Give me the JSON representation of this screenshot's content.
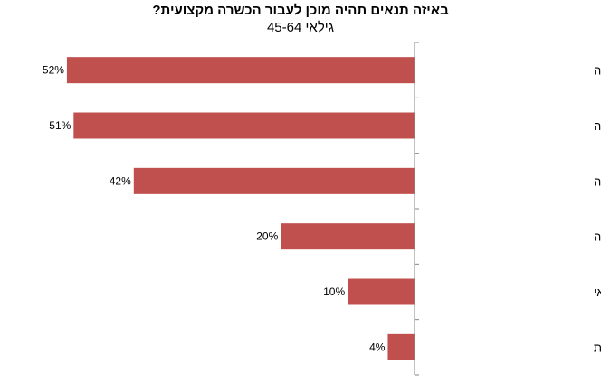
{
  "chart_data": {
    "type": "bar",
    "orientation": "horizontal",
    "title": "באיזה תנאים תהיה מוכן לעבור הכשרה מקצועית?",
    "subtitle": "גילאי 45-64",
    "categories": [
      "אפשרות בחירת תחום ההכשרה",
      "דמי קיום בגובה דמי אבטלה",
      "עבודה מובטחת בתחום ההכשרה",
      "מעורבות מעסיק בהכשרה",
      "מוכנים ללא כל תנאי",
      "לא יודע/ת"
    ],
    "values": [
      52,
      51,
      42,
      20,
      10,
      4
    ],
    "value_labels": [
      "52%",
      "51%",
      "42%",
      "20%",
      "10%",
      "4%"
    ],
    "unit": "%",
    "xlim": [
      0,
      57
    ],
    "bar_color": "#c0504d",
    "axis_color": "#868686",
    "bars_grow": "right-to-left",
    "grid": false,
    "legend": "none"
  }
}
